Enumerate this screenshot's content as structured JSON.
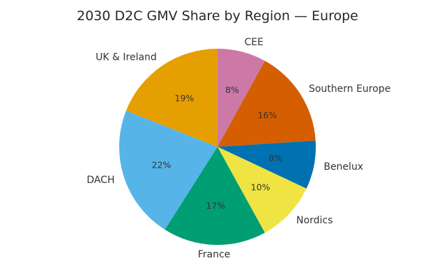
{
  "chart_data": {
    "type": "pie",
    "title": "2030 D2C GMV Share by Region — Europe",
    "start_angle_deg": 90,
    "direction": "clockwise",
    "slices": [
      {
        "label": "CEE",
        "value": 8,
        "pct_label": "8%",
        "color": "#CC79A7"
      },
      {
        "label": "Southern Europe",
        "value": 16,
        "pct_label": "16%",
        "color": "#D55E00"
      },
      {
        "label": "Benelux",
        "value": 8,
        "pct_label": "8%",
        "color": "#0072B2"
      },
      {
        "label": "Nordics",
        "value": 10,
        "pct_label": "10%",
        "color": "#F0E442"
      },
      {
        "label": "France",
        "value": 17,
        "pct_label": "17%",
        "color": "#009E73"
      },
      {
        "label": "DACH",
        "value": 22,
        "pct_label": "22%",
        "color": "#56B4E9"
      },
      {
        "label": "UK & Ireland",
        "value": 19,
        "pct_label": "19%",
        "color": "#E69F00"
      }
    ],
    "legend": "none"
  }
}
